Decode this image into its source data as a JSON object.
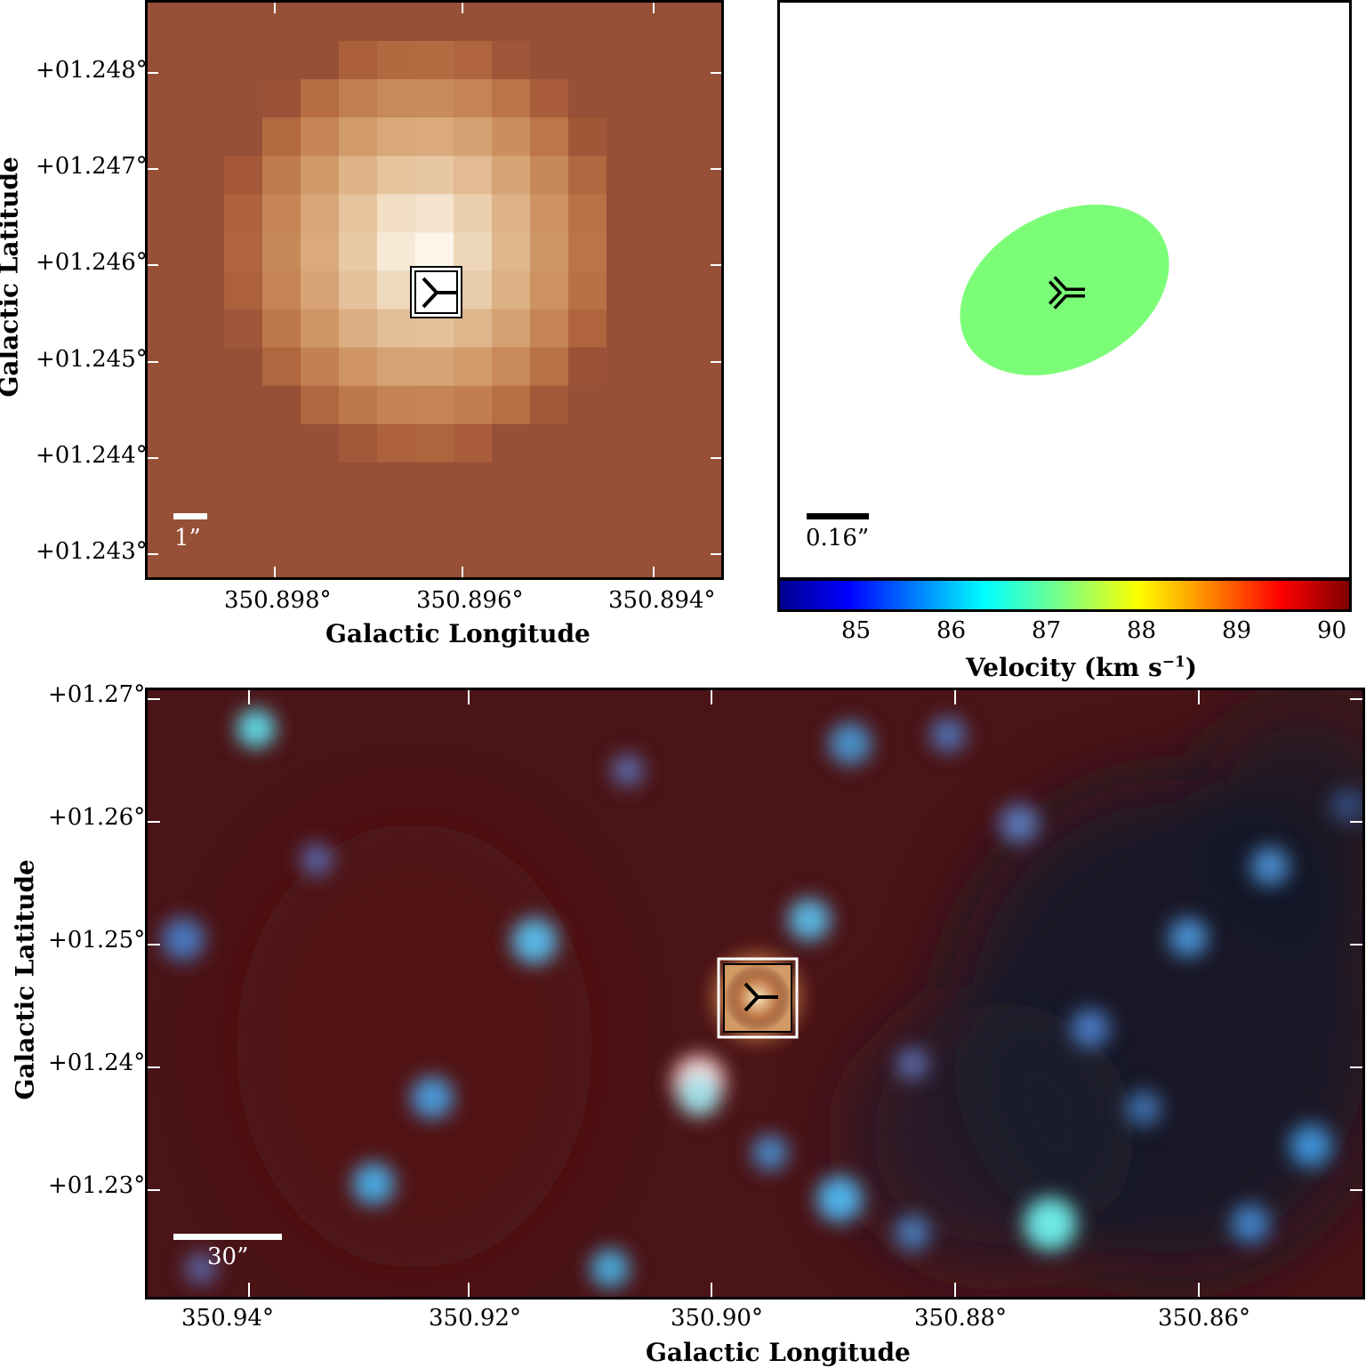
{
  "panel_top_left": {
    "y_ticks": [
      "+01.248°",
      "+01.247°",
      "+01.246°",
      "+01.245°",
      "+01.244°",
      "+01.243°"
    ],
    "x_ticks": [
      "350.898°",
      "350.896°",
      "350.894°"
    ],
    "xlabel": "Galactic Longitude",
    "ylabel": "Galactic Latitude",
    "scale_bar_label": "1”"
  },
  "panel_top_right": {
    "scale_bar_label": "0.16”",
    "ellipse_color": "#7cfd78",
    "colorbar": {
      "ticks": [
        "85",
        "86",
        "87",
        "88",
        "89",
        "90"
      ],
      "label": "Velocity (km s",
      "label_sup": "−1",
      "label_end": ")",
      "colormap": "jet"
    }
  },
  "panel_bottom": {
    "y_ticks": [
      "+01.27°",
      "+01.26°",
      "+01.25°",
      "+01.24°",
      "+01.23°"
    ],
    "x_ticks": [
      "350.94°",
      "350.92°",
      "350.90°",
      "350.88°",
      "350.86°"
    ],
    "xlabel": "Galactic Longitude",
    "ylabel": "Galactic Latitude",
    "scale_bar_label": "30”"
  },
  "marker_icon": "tri-left-marker-icon"
}
